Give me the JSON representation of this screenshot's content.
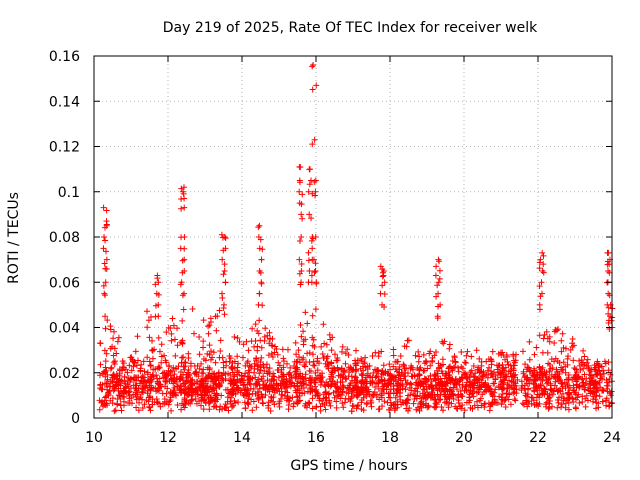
{
  "chart_data": {
    "type": "scatter",
    "title": "Day 219 of 2025, Rate Of TEC Index for receiver welk",
    "xlabel": "GPS time / hours",
    "ylabel": "ROTI / TECUs",
    "xlim": [
      10,
      24
    ],
    "ylim": [
      0,
      0.16
    ],
    "xticks": [
      10,
      12,
      14,
      16,
      18,
      20,
      22,
      24
    ],
    "yticks": [
      0,
      0.02,
      0.04,
      0.06,
      0.08,
      0.1,
      0.12,
      0.14,
      0.16
    ],
    "xtick_labels": [
      "10",
      "12",
      "14",
      "16",
      "18",
      "20",
      "22",
      "24"
    ],
    "ytick_labels": [
      "0",
      "0.02",
      "0.04",
      "0.06",
      "0.08",
      "0.1",
      "0.12",
      "0.14",
      "0.16"
    ],
    "grid": true,
    "marker": "+",
    "marker_color": "#ff0000",
    "gaps": [
      [
        21.45,
        21.55
      ]
    ],
    "baseline": {
      "low": 0.003,
      "typical_mean": 0.014,
      "typical_sd": 0.006
    },
    "envelope": [
      [
        10.0,
        0.035
      ],
      [
        10.5,
        0.045
      ],
      [
        11.0,
        0.03
      ],
      [
        11.5,
        0.05
      ],
      [
        11.8,
        0.04
      ],
      [
        12.0,
        0.045
      ],
      [
        12.5,
        0.05
      ],
      [
        13.0,
        0.045
      ],
      [
        13.5,
        0.05
      ],
      [
        14.0,
        0.035
      ],
      [
        14.5,
        0.045
      ],
      [
        15.0,
        0.03
      ],
      [
        15.5,
        0.045
      ],
      [
        16.0,
        0.05
      ],
      [
        16.5,
        0.035
      ],
      [
        17.0,
        0.03
      ],
      [
        17.5,
        0.03
      ],
      [
        18.0,
        0.03
      ],
      [
        18.5,
        0.035
      ],
      [
        19.0,
        0.03
      ],
      [
        19.5,
        0.035
      ],
      [
        20.0,
        0.03
      ],
      [
        20.5,
        0.03
      ],
      [
        21.0,
        0.03
      ],
      [
        21.4,
        0.03
      ],
      [
        21.6,
        0.03
      ],
      [
        22.0,
        0.04
      ],
      [
        22.5,
        0.04
      ],
      [
        23.0,
        0.035
      ],
      [
        23.5,
        0.025
      ],
      [
        24.0,
        0.03
      ]
    ],
    "spike_clusters": [
      {
        "x": 10.3,
        "y": [
          0.045,
          0.055,
          0.06,
          0.066,
          0.07,
          0.075,
          0.08,
          0.085,
          0.087,
          0.093
        ]
      },
      {
        "x": 11.7,
        "y": [
          0.045,
          0.05,
          0.055,
          0.06,
          0.063
        ]
      },
      {
        "x": 12.4,
        "y": [
          0.055,
          0.06,
          0.065,
          0.07,
          0.075,
          0.08,
          0.093,
          0.097,
          0.1,
          0.102
        ]
      },
      {
        "x": 13.5,
        "y": [
          0.05,
          0.055,
          0.06,
          0.065,
          0.07,
          0.075,
          0.08,
          0.081
        ]
      },
      {
        "x": 14.5,
        "y": [
          0.05,
          0.055,
          0.06,
          0.065,
          0.07,
          0.075,
          0.08,
          0.085
        ]
      },
      {
        "x": 15.6,
        "y": [
          0.06,
          0.065,
          0.07,
          0.08,
          0.09,
          0.095,
          0.1,
          0.105,
          0.111
        ]
      },
      {
        "x": 15.85,
        "y": [
          0.06,
          0.065,
          0.07,
          0.075,
          0.08,
          0.09,
          0.1,
          0.105,
          0.11
        ]
      },
      {
        "x": 15.95,
        "y": [
          0.06,
          0.065,
          0.07,
          0.08,
          0.1,
          0.105,
          0.123,
          0.147,
          0.156
        ]
      },
      {
        "x": 17.8,
        "y": [
          0.05,
          0.055,
          0.06,
          0.063,
          0.065,
          0.067
        ]
      },
      {
        "x": 19.3,
        "y": [
          0.045,
          0.05,
          0.055,
          0.06,
          0.063,
          0.067,
          0.07
        ]
      },
      {
        "x": 22.1,
        "y": [
          0.05,
          0.055,
          0.06,
          0.065,
          0.068,
          0.07,
          0.073
        ]
      },
      {
        "x": 23.9,
        "y": [
          0.045,
          0.05,
          0.055,
          0.06,
          0.065,
          0.068,
          0.07,
          0.073
        ]
      },
      {
        "x": 23.95,
        "y": [
          0.04,
          0.043,
          0.046,
          0.05
        ]
      }
    ]
  }
}
